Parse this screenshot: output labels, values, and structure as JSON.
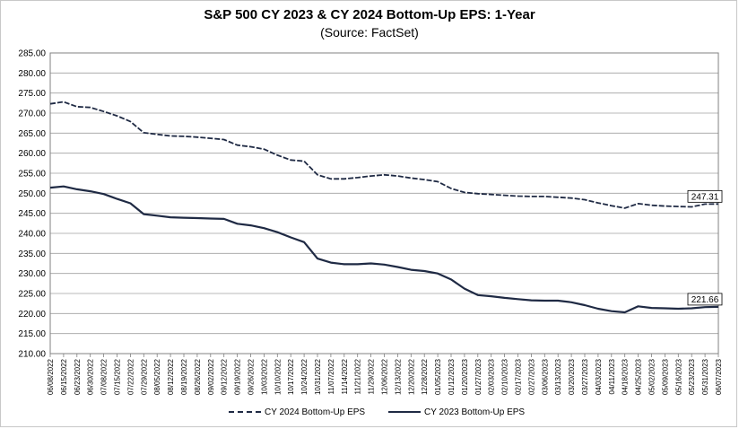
{
  "chart_data": {
    "type": "line",
    "title": "S&P 500 CY 2023 & CY 2024 Bottom-Up EPS: 1-Year",
    "subtitle": "(Source: FactSet)",
    "xlabel": "",
    "ylabel": "",
    "ylim": [
      210,
      285
    ],
    "yticks": [
      "285.00",
      "280.00",
      "275.00",
      "270.00",
      "265.00",
      "260.00",
      "255.00",
      "250.00",
      "245.00",
      "240.00",
      "235.00",
      "230.00",
      "225.00",
      "220.00",
      "215.00",
      "210.00"
    ],
    "xticks": [
      "06/08/2022",
      "06/15/2022",
      "06/23/2022",
      "06/30/2022",
      "07/08/2022",
      "07/15/2022",
      "07/22/2022",
      "07/29/2022",
      "08/05/2022",
      "08/12/2022",
      "08/19/2022",
      "08/26/2022",
      "09/02/2022",
      "09/12/2022",
      "09/19/2022",
      "09/26/2022",
      "10/03/2022",
      "10/10/2022",
      "10/17/2022",
      "10/24/2022",
      "10/31/2022",
      "11/07/2022",
      "11/14/2022",
      "11/21/2022",
      "11/29/2022",
      "12/06/2022",
      "12/13/2022",
      "12/20/2022",
      "12/28/2022",
      "01/05/2023",
      "01/12/2023",
      "01/20/2023",
      "01/27/2023",
      "02/03/2023",
      "02/10/2023",
      "02/17/2023",
      "02/27/2023",
      "03/06/2023",
      "03/13/2023",
      "03/20/2023",
      "03/27/2023",
      "04/03/2023",
      "04/11/2023",
      "04/18/2023",
      "04/25/2023",
      "05/02/2023",
      "05/09/2023",
      "05/16/2023",
      "05/23/2023",
      "05/31/2023",
      "06/07/2023"
    ],
    "grid": true,
    "legend_position": "bottom",
    "color": "#1f2a44",
    "series": [
      {
        "name": "CY 2024 Bottom-Up EPS",
        "style": "dashed",
        "end_label": "247.31",
        "values": [
          272.3,
          272.8,
          271.6,
          271.4,
          270.4,
          269.3,
          267.9,
          265.1,
          264.7,
          264.3,
          264.2,
          264.0,
          263.7,
          263.4,
          262.0,
          261.6,
          261.0,
          259.5,
          258.3,
          258.0,
          254.6,
          253.6,
          253.6,
          253.9,
          254.3,
          254.6,
          254.3,
          253.8,
          253.4,
          252.9,
          251.2,
          250.2,
          249.9,
          249.7,
          249.5,
          249.3,
          249.2,
          249.2,
          249.0,
          248.8,
          248.4,
          247.6,
          246.9,
          246.3,
          247.4,
          247.0,
          246.8,
          246.7,
          246.6,
          247.3,
          247.31
        ]
      },
      {
        "name": "CY 2023 Bottom-Up EPS",
        "style": "solid",
        "end_label": "221.66",
        "values": [
          251.4,
          251.7,
          251.0,
          250.5,
          249.8,
          248.6,
          247.5,
          244.8,
          244.4,
          244.0,
          243.9,
          243.8,
          243.7,
          243.6,
          242.4,
          242.0,
          241.3,
          240.3,
          239.0,
          237.8,
          233.7,
          232.7,
          232.3,
          232.3,
          232.5,
          232.2,
          231.6,
          230.9,
          230.6,
          230.0,
          228.5,
          226.2,
          224.6,
          224.3,
          223.9,
          223.6,
          223.3,
          223.2,
          223.2,
          222.8,
          222.1,
          221.2,
          220.6,
          220.3,
          221.8,
          221.4,
          221.3,
          221.2,
          221.3,
          221.6,
          221.66
        ]
      }
    ]
  }
}
